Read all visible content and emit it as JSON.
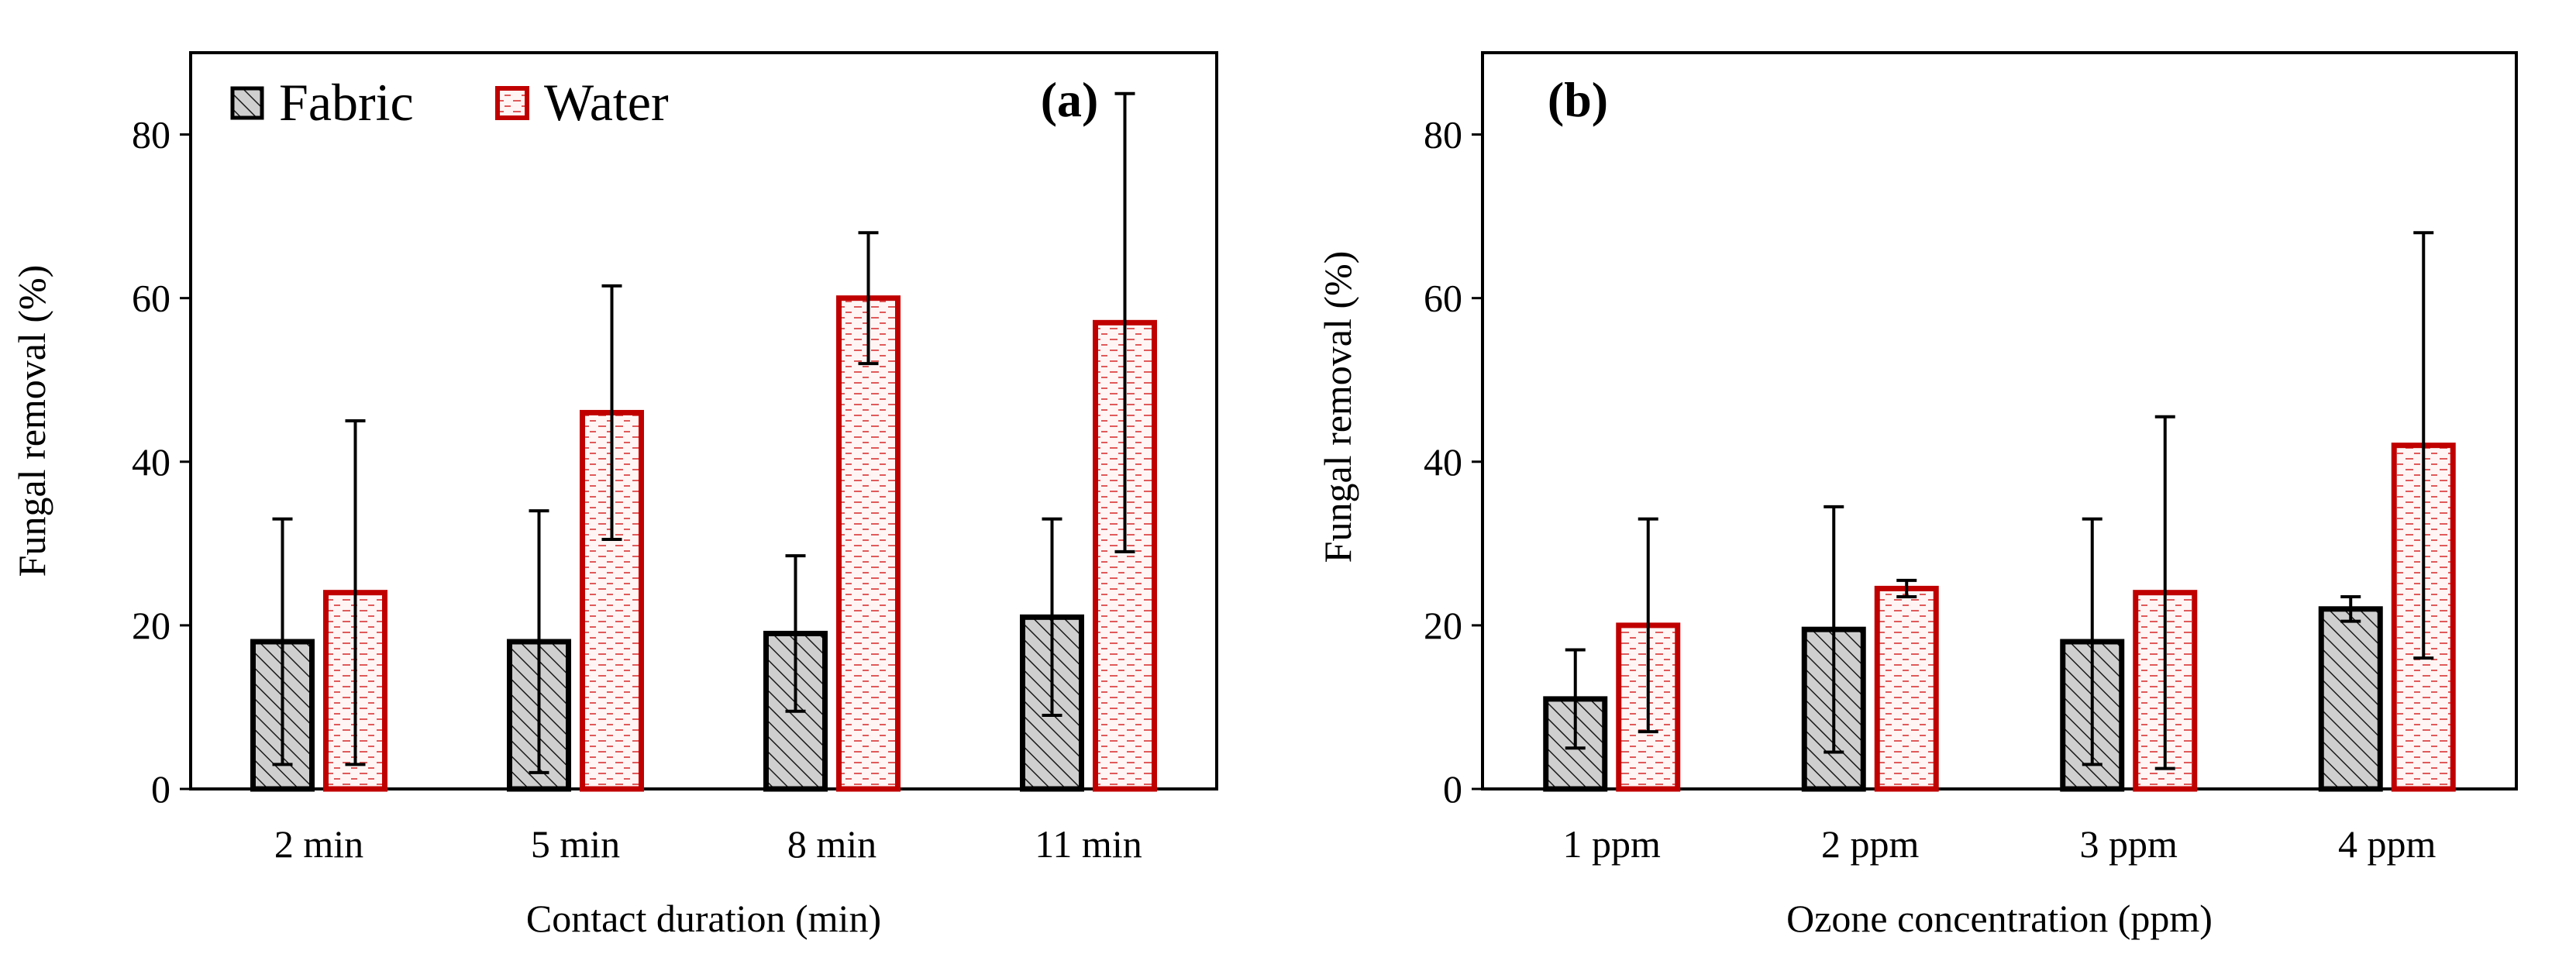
{
  "chart_data": [
    {
      "type": "bar",
      "panel": "(a)",
      "categories": [
        "2 min",
        "5 min",
        "8 min",
        "11 min"
      ],
      "xlabel": "Contact duration (min)",
      "ylabel": "Fungal removal (%)",
      "ylim": [
        0,
        90
      ],
      "yticks": [
        0,
        20,
        40,
        60,
        80
      ],
      "legend_position": "top-left",
      "series": [
        {
          "name": "Fabric",
          "values": [
            18,
            18,
            19,
            21
          ],
          "error": [
            15,
            16,
            9.5,
            12
          ]
        },
        {
          "name": "Water",
          "values": [
            24,
            46,
            60,
            57
          ],
          "error": [
            21,
            15.5,
            8,
            28
          ]
        }
      ]
    },
    {
      "type": "bar",
      "panel": "(b)",
      "categories": [
        "1 ppm",
        "2 ppm",
        "3 ppm",
        "4 ppm"
      ],
      "xlabel": "Ozone concentration (ppm)",
      "ylabel": "Fungal removal (%)",
      "ylim": [
        0,
        90
      ],
      "yticks": [
        0,
        20,
        40,
        60,
        80
      ],
      "series": [
        {
          "name": "Fabric",
          "values": [
            11,
            19.5,
            18,
            22
          ],
          "error": [
            6,
            15,
            15,
            1.5
          ]
        },
        {
          "name": "Water",
          "values": [
            20,
            24.5,
            24,
            42
          ],
          "error": [
            13,
            1,
            21.5,
            26
          ]
        }
      ]
    }
  ],
  "legend": {
    "fabric": "Fabric",
    "water": "Water"
  },
  "colors": {
    "fabric_fill": "#c8c8c8",
    "fabric_stroke": "#000000",
    "water_stroke": "#c00000",
    "water_dash": "#e06060"
  }
}
